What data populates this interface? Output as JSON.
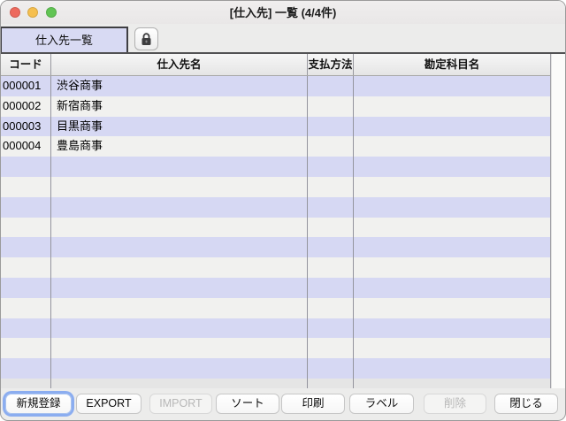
{
  "window": {
    "title": "[仕入先] 一覧 (4/4件)"
  },
  "titlebar": {
    "close_color": "#ed6a5e",
    "minimize_color": "#f5bf4f",
    "zoom_color": "#61c454"
  },
  "toolbar": {
    "tab_label": "仕入先一覧",
    "lock_icon": "lock-icon"
  },
  "table": {
    "columns": [
      {
        "key": "code",
        "label": "コード"
      },
      {
        "key": "name",
        "label": "仕入先名"
      },
      {
        "key": "payment",
        "label": "支払方法"
      },
      {
        "key": "account",
        "label": "勘定科目名"
      }
    ],
    "rows": [
      {
        "code": "000001",
        "name": "渋谷商事",
        "payment": "",
        "account": ""
      },
      {
        "code": "000002",
        "name": "新宿商事",
        "payment": "",
        "account": ""
      },
      {
        "code": "000003",
        "name": "目黒商事",
        "payment": "",
        "account": ""
      },
      {
        "code": "000004",
        "name": "豊島商事",
        "payment": "",
        "account": ""
      }
    ],
    "empty_stripe_count": 11,
    "stripe_odd_color": "#d6d8f3",
    "stripe_even_color": "#f1f1ef"
  },
  "footer": {
    "buttons": [
      {
        "label": "新規登録",
        "name": "new-record-button",
        "state": "focused"
      },
      {
        "label": "EXPORT",
        "name": "export-button",
        "state": "normal"
      },
      {
        "label": "IMPORT",
        "name": "import-button",
        "state": "disabled"
      },
      {
        "label": "ソート",
        "name": "sort-button",
        "state": "normal"
      },
      {
        "label": "印刷",
        "name": "print-button",
        "state": "normal"
      },
      {
        "label": "ラベル",
        "name": "label-button",
        "state": "normal"
      },
      {
        "label": "削除",
        "name": "delete-button",
        "state": "disabled"
      },
      {
        "label": "閉じる",
        "name": "close-button",
        "state": "normal"
      }
    ]
  }
}
